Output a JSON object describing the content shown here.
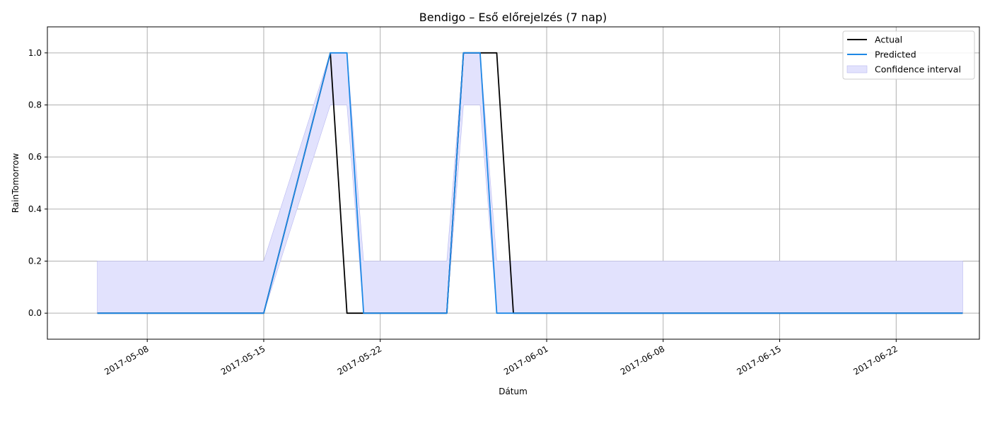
{
  "chart_data": {
    "type": "line",
    "title": "Bendigo – Eső előrejelzés (7 nap)",
    "xlabel": "Dátum",
    "ylabel": "RainTomorrow",
    "ylim": [
      -0.1,
      1.1
    ],
    "xlim": [
      "2017-05-02",
      "2017-06-27"
    ],
    "yticks": [
      0.0,
      0.2,
      0.4,
      0.6,
      0.8,
      1.0
    ],
    "ytick_labels": [
      "0.0",
      "0.2",
      "0.4",
      "0.6",
      "0.8",
      "1.0"
    ],
    "xticks": [
      "2017-05-08",
      "2017-05-15",
      "2017-05-22",
      "2017-06-01",
      "2017-06-08",
      "2017-06-15",
      "2017-06-22"
    ],
    "grid": true,
    "legend_position": "top-right",
    "series": [
      {
        "name": "Actual",
        "color": "#000000",
        "points": [
          [
            "2017-05-05",
            0
          ],
          [
            "2017-05-15",
            0
          ],
          [
            "2017-05-19",
            1
          ],
          [
            "2017-05-20",
            0
          ],
          [
            "2017-05-21",
            0
          ],
          [
            "2017-05-26",
            0
          ],
          [
            "2017-05-27",
            1
          ],
          [
            "2017-05-29",
            1
          ],
          [
            "2017-05-30",
            0
          ],
          [
            "2017-06-26",
            0
          ]
        ]
      },
      {
        "name": "Predicted",
        "color": "#1e88e5",
        "points": [
          [
            "2017-05-05",
            0
          ],
          [
            "2017-05-15",
            0
          ],
          [
            "2017-05-19",
            1
          ],
          [
            "2017-05-20",
            1
          ],
          [
            "2017-05-21",
            0
          ],
          [
            "2017-05-26",
            0
          ],
          [
            "2017-05-27",
            1
          ],
          [
            "2017-05-28",
            1
          ],
          [
            "2017-05-29",
            0
          ],
          [
            "2017-06-26",
            0
          ]
        ]
      }
    ],
    "confidence_interval": {
      "name": "Confidence interval",
      "color": "#e2e2fd",
      "edge_color": "#b9b9f0",
      "lower": [
        [
          "2017-05-05",
          0
        ],
        [
          "2017-05-15",
          0
        ],
        [
          "2017-05-19",
          0.8
        ],
        [
          "2017-05-20",
          0.8
        ],
        [
          "2017-05-21",
          0
        ],
        [
          "2017-05-26",
          0
        ],
        [
          "2017-05-27",
          0.8
        ],
        [
          "2017-05-28",
          0.8
        ],
        [
          "2017-05-29",
          0
        ],
        [
          "2017-06-26",
          0
        ]
      ],
      "upper": [
        [
          "2017-05-05",
          0.2
        ],
        [
          "2017-05-15",
          0.2
        ],
        [
          "2017-05-19",
          1
        ],
        [
          "2017-05-20",
          1
        ],
        [
          "2017-05-21",
          0.2
        ],
        [
          "2017-05-26",
          0.2
        ],
        [
          "2017-05-27",
          1
        ],
        [
          "2017-05-28",
          1
        ],
        [
          "2017-05-29",
          0.2
        ],
        [
          "2017-06-26",
          0.2
        ]
      ]
    }
  }
}
